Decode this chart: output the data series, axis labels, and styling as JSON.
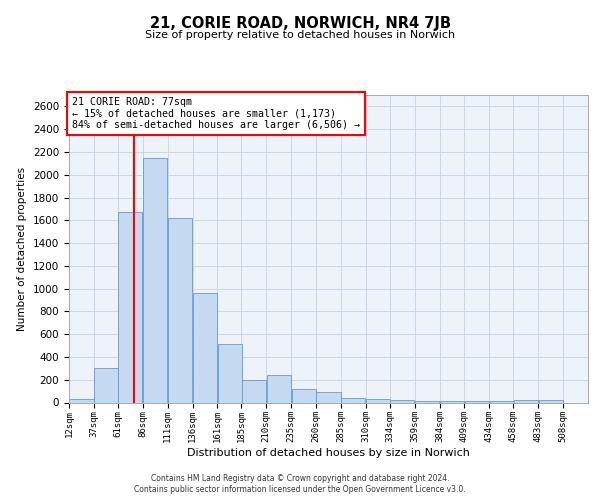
{
  "title": "21, CORIE ROAD, NORWICH, NR4 7JB",
  "subtitle": "Size of property relative to detached houses in Norwich",
  "xlabel": "Distribution of detached houses by size in Norwich",
  "ylabel": "Number of detached properties",
  "bar_color": "#c5d9f0",
  "bar_edge_color": "#6699cc",
  "grid_color": "#c8d8e8",
  "background_color": "#eef3fa",
  "vline_x": 77,
  "vline_color": "red",
  "annotation_text": "21 CORIE ROAD: 77sqm\n← 15% of detached houses are smaller (1,173)\n84% of semi-detached houses are larger (6,506) →",
  "annotation_box_color": "white",
  "annotation_box_edge": "red",
  "bins_left_edges": [
    12,
    37,
    61,
    86,
    111,
    136,
    161,
    185,
    210,
    235,
    260,
    285,
    310,
    334,
    359,
    384,
    409,
    434,
    458,
    483
  ],
  "bin_width": 25,
  "bar_heights": [
    30,
    300,
    1670,
    2150,
    1620,
    960,
    510,
    200,
    240,
    120,
    90,
    40,
    30,
    20,
    10,
    10,
    10,
    10,
    20,
    20
  ],
  "ylim": [
    0,
    2700
  ],
  "yticks": [
    0,
    200,
    400,
    600,
    800,
    1000,
    1200,
    1400,
    1600,
    1800,
    2000,
    2200,
    2400,
    2600
  ],
  "xtick_labels": [
    "12sqm",
    "37sqm",
    "61sqm",
    "86sqm",
    "111sqm",
    "136sqm",
    "161sqm",
    "185sqm",
    "210sqm",
    "235sqm",
    "260sqm",
    "285sqm",
    "310sqm",
    "334sqm",
    "359sqm",
    "384sqm",
    "409sqm",
    "434sqm",
    "458sqm",
    "483sqm",
    "508sqm"
  ],
  "footer_line1": "Contains HM Land Registry data © Crown copyright and database right 2024.",
  "footer_line2": "Contains public sector information licensed under the Open Government Licence v3.0."
}
